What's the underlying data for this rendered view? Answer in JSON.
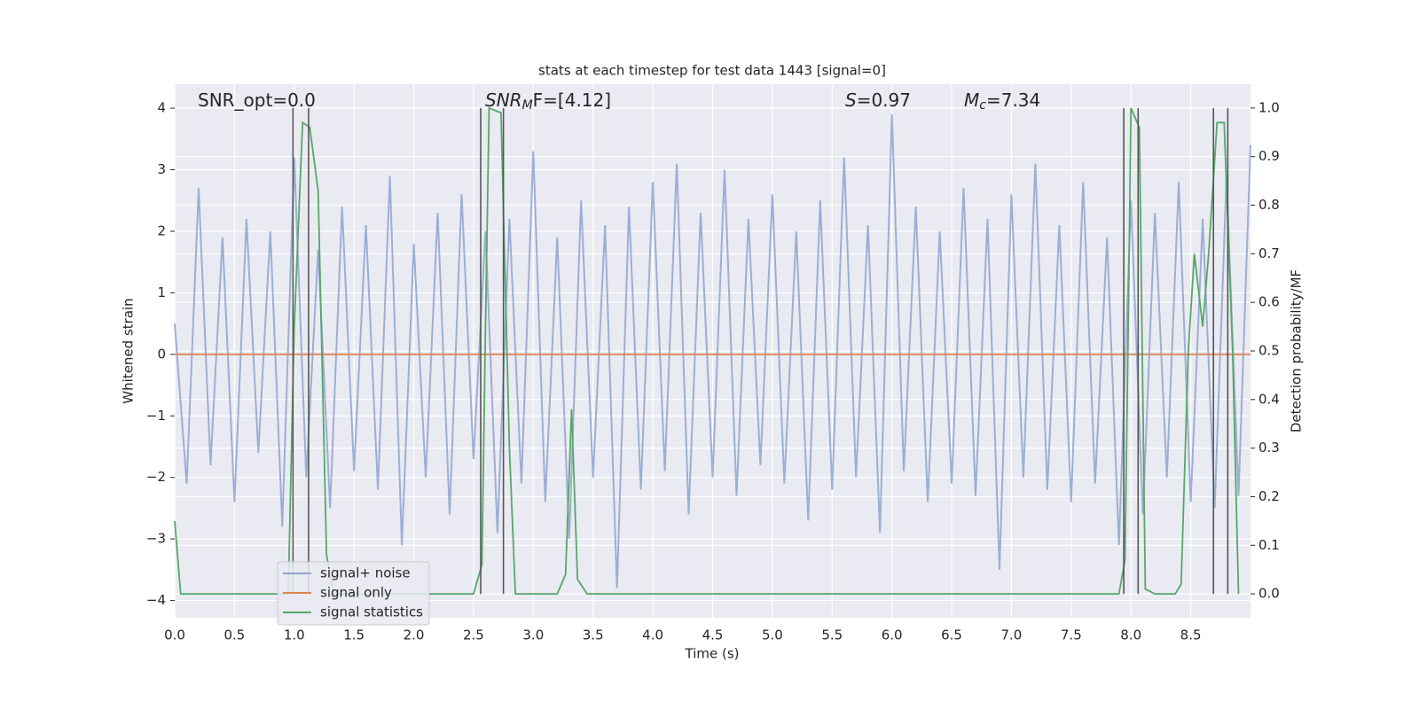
{
  "chart_data": {
    "type": "line",
    "title": "stats at each timestep for test data 1443 [signal=0]",
    "xlabel": "Time (s)",
    "ylabel": "Whitened strain",
    "y2label": "Detection probability/MF",
    "annotations": [
      {
        "main": "SNR_opt=0.0"
      },
      {
        "main": "SNR",
        "sub": "M",
        "suffix": "F=[4.12]"
      },
      {
        "main": "S",
        "suffix": "=0.97"
      },
      {
        "main": "M",
        "sub": "c",
        "suffix": "=7.34"
      }
    ],
    "xlim": [
      0,
      9.0
    ],
    "ylim": [
      -4.28,
      4.39
    ],
    "y2lim": [
      -0.049,
      1.049
    ],
    "xticks": [
      {
        "value": 0,
        "label": "0.0"
      },
      0.5,
      {
        "value": 1,
        "label": "1.0"
      },
      1.5,
      {
        "value": 2,
        "label": "2.0"
      },
      2.5,
      {
        "value": 3,
        "label": "3.0"
      },
      3.5,
      {
        "value": 4,
        "label": "4.0"
      },
      4.5,
      {
        "value": 5,
        "label": "5.0"
      },
      5.5,
      {
        "value": 6,
        "label": "6.0"
      },
      6.5,
      {
        "value": 7,
        "label": "7.0"
      },
      7.5,
      {
        "value": 8,
        "label": "8.0"
      },
      8.5
    ],
    "yticks": [
      {
        "value": -4,
        "label": "−4"
      },
      {
        "value": -3,
        "label": "−3"
      },
      {
        "value": -2,
        "label": "−2"
      },
      {
        "value": -1,
        "label": "−1"
      },
      0,
      1,
      2,
      3,
      4
    ],
    "y2ticks": [
      {
        "value": 0,
        "label": "0.0"
      },
      0.1,
      0.2,
      0.3,
      0.4,
      0.5,
      0.6,
      0.7,
      0.8,
      0.9,
      {
        "value": 1,
        "label": "1.0"
      }
    ],
    "grid": true,
    "legend": "lower left",
    "series": [
      {
        "name": "signal+ noise",
        "color": "#8fa3cf",
        "x": [
          0,
          0.1,
          0.2,
          0.3,
          0.4,
          0.5,
          0.6,
          0.7,
          0.8,
          0.9,
          1.0,
          1.1,
          1.2,
          1.3,
          1.4,
          1.5,
          1.6,
          1.7,
          1.8,
          1.9,
          2.0,
          2.1,
          2.2,
          2.3,
          2.4,
          2.5,
          2.6,
          2.7,
          2.8,
          2.9,
          3.0,
          3.1,
          3.2,
          3.3,
          3.4,
          3.5,
          3.6,
          3.7,
          3.8,
          3.9,
          4.0,
          4.1,
          4.2,
          4.3,
          4.4,
          4.5,
          4.6,
          4.7,
          4.8,
          4.9,
          5.0,
          5.1,
          5.2,
          5.3,
          5.4,
          5.5,
          5.6,
          5.7,
          5.8,
          5.9,
          6.0,
          6.1,
          6.2,
          6.3,
          6.4,
          6.5,
          6.6,
          6.7,
          6.8,
          6.9,
          7.0,
          7.1,
          7.2,
          7.3,
          7.4,
          7.5,
          7.6,
          7.7,
          7.8,
          7.9,
          8.0,
          8.1,
          8.2,
          8.3,
          8.4,
          8.5,
          8.6,
          8.7,
          8.8,
          8.9,
          9.0
        ],
        "values": [
          0.5,
          -2.1,
          2.7,
          -1.8,
          1.9,
          -2.4,
          2.2,
          -1.6,
          2.0,
          -2.8,
          3.2,
          -2.0,
          1.7,
          -2.5,
          2.4,
          -1.9,
          2.1,
          -2.2,
          2.9,
          -3.1,
          1.8,
          -2.0,
          2.3,
          -2.6,
          2.6,
          -1.7,
          2.0,
          -2.9,
          2.2,
          -2.1,
          3.3,
          -2.4,
          1.9,
          -3.0,
          2.5,
          -2.0,
          2.1,
          -3.8,
          2.4,
          -2.2,
          2.8,
          -1.9,
          3.1,
          -2.6,
          2.3,
          -2.0,
          3.0,
          -2.3,
          2.2,
          -1.8,
          2.6,
          -2.1,
          2.0,
          -2.7,
          2.5,
          -2.2,
          3.2,
          -2.0,
          2.1,
          -2.9,
          3.9,
          -1.9,
          2.4,
          -2.4,
          2.0,
          -2.1,
          2.7,
          -2.3,
          2.2,
          -3.5,
          2.6,
          -2.0,
          3.1,
          -2.2,
          2.1,
          -2.4,
          2.8,
          -2.1,
          1.9,
          -3.1,
          2.5,
          -2.6,
          2.3,
          -2.0,
          2.8,
          -2.4,
          2.2,
          -2.5,
          2.9,
          -2.3,
          3.4
        ]
      },
      {
        "name": "signal only",
        "color": "#dd8452",
        "x": [
          0,
          9.0
        ],
        "values": [
          0,
          0
        ]
      },
      {
        "name": "signal statistics",
        "color": "#55a868",
        "axis": "y2",
        "x": [
          0.0,
          0.05,
          0.95,
          1.0,
          1.07,
          1.13,
          1.2,
          1.27,
          1.33,
          2.5,
          2.57,
          2.6,
          2.63,
          2.73,
          2.8,
          2.85,
          3.2,
          3.27,
          3.32,
          3.37,
          3.45,
          7.9,
          7.95,
          7.98,
          8.0,
          8.07,
          8.12,
          8.2,
          8.37,
          8.42,
          8.48,
          8.53,
          8.6,
          8.65,
          8.72,
          8.78,
          8.85,
          8.9
        ],
        "values": [
          0.15,
          0.0,
          0.0,
          0.55,
          0.97,
          0.96,
          0.83,
          0.08,
          0.0,
          0.0,
          0.06,
          0.55,
          1.0,
          0.99,
          0.3,
          0.0,
          0.0,
          0.04,
          0.38,
          0.03,
          0.0,
          0.0,
          0.07,
          0.6,
          1.0,
          0.96,
          0.01,
          0.0,
          0.0,
          0.02,
          0.5,
          0.7,
          0.55,
          0.7,
          0.97,
          0.97,
          0.5,
          0.0
        ]
      }
    ],
    "vlines": {
      "color": "#555555",
      "x": [
        0.99,
        1.12,
        2.56,
        2.75,
        7.94,
        8.06,
        8.69,
        8.81
      ]
    }
  }
}
